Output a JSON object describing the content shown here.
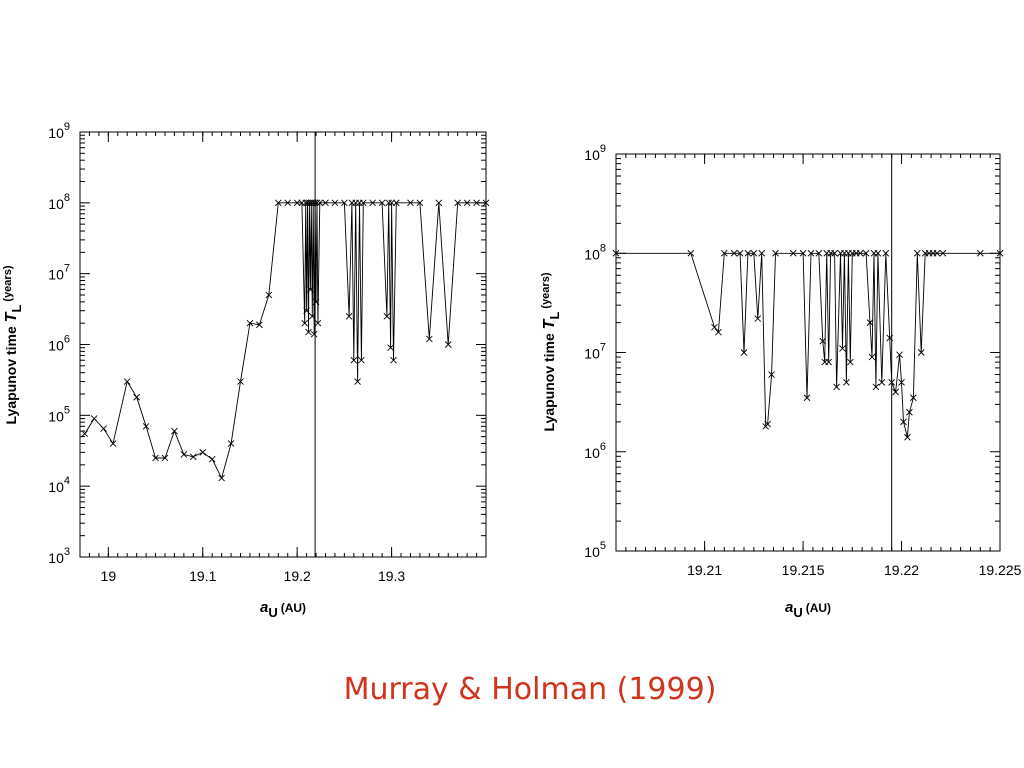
{
  "caption": "Murray & Holman (1999)",
  "colors": {
    "caption": "#d0341c",
    "line": "#000000"
  },
  "chart_data": [
    {
      "type": "line",
      "marker": "x",
      "xlabel": {
        "var": "a",
        "sub": "U",
        "unit": "(AU)"
      },
      "ylabel": {
        "text": "Lyapunov time",
        "var": "T",
        "sub": "L",
        "unit": "(years)"
      },
      "xlim": [
        18.97,
        19.4
      ],
      "ylim": [
        1000,
        1000000000
      ],
      "yscale": "log",
      "xticks": [
        19,
        19.1,
        19.2,
        19.3
      ],
      "xtick_labels": [
        "19",
        "19.1",
        "19.2",
        "19.3"
      ],
      "ytick_exponents": [
        3,
        4,
        5,
        6,
        7,
        8,
        9
      ],
      "vline": 19.219,
      "points": [
        [
          18.975,
          55000
        ],
        [
          18.985,
          90000
        ],
        [
          18.995,
          65000
        ],
        [
          19.005,
          40000
        ],
        [
          19.02,
          300000
        ],
        [
          19.03,
          180000
        ],
        [
          19.04,
          70000
        ],
        [
          19.05,
          25000
        ],
        [
          19.06,
          25000
        ],
        [
          19.07,
          60000
        ],
        [
          19.08,
          28000
        ],
        [
          19.09,
          26000
        ],
        [
          19.1,
          30000
        ],
        [
          19.11,
          24000
        ],
        [
          19.12,
          13000
        ],
        [
          19.13,
          40000
        ],
        [
          19.14,
          300000
        ],
        [
          19.15,
          2000000
        ],
        [
          19.16,
          1900000
        ],
        [
          19.17,
          5000000
        ],
        [
          19.18,
          100000000
        ],
        [
          19.19,
          100000000
        ],
        [
          19.2,
          100000000
        ],
        [
          19.205,
          100000000
        ],
        [
          19.208,
          2000000
        ],
        [
          19.209,
          100000000
        ],
        [
          19.21,
          3000000
        ],
        [
          19.211,
          100000000
        ],
        [
          19.212,
          1500000
        ],
        [
          19.213,
          100000000
        ],
        [
          19.214,
          6000000
        ],
        [
          19.215,
          100000000
        ],
        [
          19.216,
          2500000
        ],
        [
          19.217,
          100000000
        ],
        [
          19.218,
          1400000
        ],
        [
          19.219,
          100000000
        ],
        [
          19.22,
          4000000
        ],
        [
          19.221,
          100000000
        ],
        [
          19.222,
          2000000
        ],
        [
          19.224,
          100000000
        ],
        [
          19.23,
          100000000
        ],
        [
          19.24,
          100000000
        ],
        [
          19.25,
          100000000
        ],
        [
          19.255,
          2500000
        ],
        [
          19.258,
          100000000
        ],
        [
          19.26,
          600000
        ],
        [
          19.262,
          100000000
        ],
        [
          19.264,
          300000
        ],
        [
          19.266,
          100000000
        ],
        [
          19.268,
          600000
        ],
        [
          19.27,
          100000000
        ],
        [
          19.28,
          100000000
        ],
        [
          19.29,
          100000000
        ],
        [
          19.295,
          2500000
        ],
        [
          19.297,
          100000000
        ],
        [
          19.299,
          900000
        ],
        [
          19.3,
          100000000
        ],
        [
          19.302,
          600000
        ],
        [
          19.305,
          100000000
        ],
        [
          19.32,
          100000000
        ],
        [
          19.33,
          100000000
        ],
        [
          19.34,
          1200000
        ],
        [
          19.35,
          100000000
        ],
        [
          19.36,
          1000000
        ],
        [
          19.37,
          100000000
        ],
        [
          19.38,
          100000000
        ],
        [
          19.39,
          100000000
        ],
        [
          19.4,
          100000000
        ]
      ]
    },
    {
      "type": "line",
      "marker": "x",
      "xlabel": {
        "var": "a",
        "sub": "U",
        "unit": "(AU)"
      },
      "ylabel": {
        "text": "Lyapunov time",
        "var": "T",
        "sub": "L",
        "unit": "(years)"
      },
      "xlim": [
        19.2055,
        19.225
      ],
      "ylim": [
        100000,
        1000000000
      ],
      "yscale": "log",
      "xticks": [
        19.21,
        19.215,
        19.22,
        19.225
      ],
      "xtick_labels": [
        "19.21",
        "19.215",
        "19.22",
        "19.225"
      ],
      "ytick_exponents": [
        5,
        6,
        7,
        8,
        9
      ],
      "vline": 19.2195,
      "points": [
        [
          19.2055,
          100000000
        ],
        [
          19.2093,
          100000000
        ],
        [
          19.2105,
          18000000
        ],
        [
          19.2107,
          16000000
        ],
        [
          19.211,
          100000000
        ],
        [
          19.2115,
          100000000
        ],
        [
          19.2118,
          100000000
        ],
        [
          19.212,
          10000000
        ],
        [
          19.2122,
          100000000
        ],
        [
          19.2125,
          100000000
        ],
        [
          19.2127,
          22000000
        ],
        [
          19.2129,
          100000000
        ],
        [
          19.2131,
          1800000
        ],
        [
          19.2132,
          1900000
        ],
        [
          19.2134,
          6000000
        ],
        [
          19.2136,
          100000000
        ],
        [
          19.2145,
          100000000
        ],
        [
          19.215,
          100000000
        ],
        [
          19.2152,
          3500000
        ],
        [
          19.2154,
          100000000
        ],
        [
          19.2158,
          100000000
        ],
        [
          19.216,
          13000000
        ],
        [
          19.2161,
          8000000
        ],
        [
          19.2162,
          100000000
        ],
        [
          19.2163,
          8000000
        ],
        [
          19.2164,
          100000000
        ],
        [
          19.2166,
          100000000
        ],
        [
          19.2167,
          4500000
        ],
        [
          19.2169,
          100000000
        ],
        [
          19.217,
          11000000
        ],
        [
          19.2171,
          100000000
        ],
        [
          19.2172,
          5000000
        ],
        [
          19.2173,
          100000000
        ],
        [
          19.2174,
          8000000
        ],
        [
          19.2175,
          100000000
        ],
        [
          19.2177,
          100000000
        ],
        [
          19.2179,
          100000000
        ],
        [
          19.2182,
          100000000
        ],
        [
          19.2184,
          20000000
        ],
        [
          19.2185,
          9000000
        ],
        [
          19.2186,
          100000000
        ],
        [
          19.2187,
          4500000
        ],
        [
          19.2188,
          100000000
        ],
        [
          19.219,
          5000000
        ],
        [
          19.2192,
          100000000
        ],
        [
          19.2194,
          14000000
        ],
        [
          19.2195,
          5000000
        ],
        [
          19.2197,
          4000000
        ],
        [
          19.2199,
          9500000
        ],
        [
          19.22,
          5000000
        ],
        [
          19.2201,
          2000000
        ],
        [
          19.2203,
          1400000
        ],
        [
          19.2204,
          2500000
        ],
        [
          19.2206,
          3500000
        ],
        [
          19.2208,
          100000000
        ],
        [
          19.221,
          10000000
        ],
        [
          19.2212,
          100000000
        ],
        [
          19.2214,
          100000000
        ],
        [
          19.2216,
          100000000
        ],
        [
          19.2218,
          100000000
        ],
        [
          19.2221,
          100000000
        ],
        [
          19.224,
          100000000
        ],
        [
          19.225,
          100000000
        ]
      ]
    }
  ]
}
